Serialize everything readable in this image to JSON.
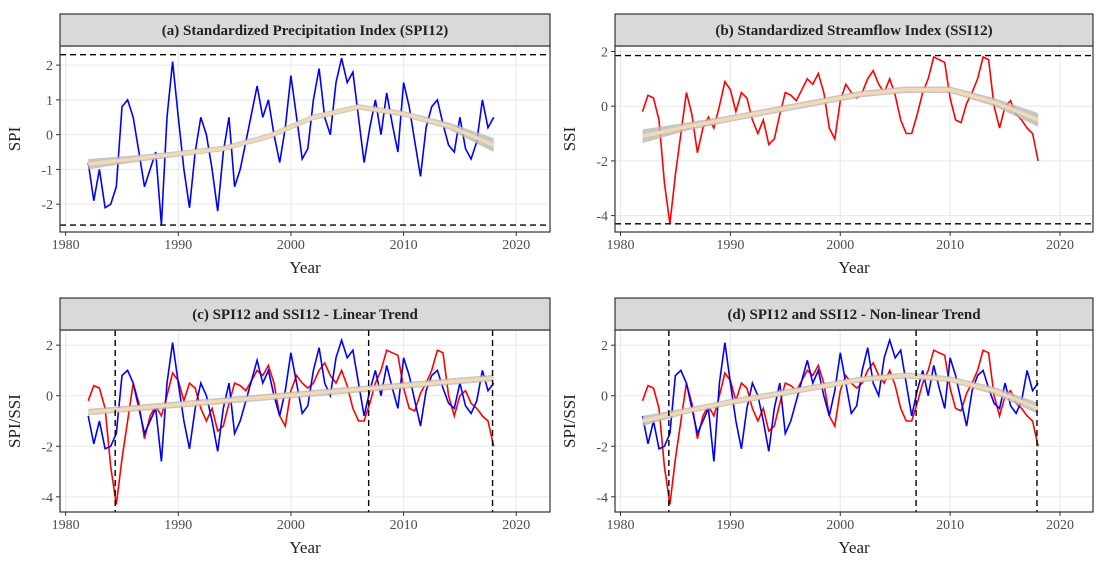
{
  "chart_data": [
    {
      "type": "line",
      "title": "(a) Standardized Precipitation Index (SPI12)",
      "x_label": "Year",
      "y_label": "SPI",
      "xlim": [
        1979.5,
        2023
      ],
      "xticks": [
        1980,
        1990,
        2000,
        2010,
        2020
      ],
      "ylim": [
        -2.8,
        2.55
      ],
      "yticks": [
        -2,
        -1,
        0,
        1,
        2
      ],
      "grid": true,
      "hlines": [
        2.3,
        -2.6
      ],
      "x": [
        1982,
        1982.5,
        1983,
        1983.5,
        1984,
        1984.5,
        1985,
        1985.5,
        1986,
        1986.5,
        1987,
        1987.5,
        1988,
        1988.5,
        1989,
        1989.5,
        1990,
        1990.5,
        1991,
        1991.5,
        1992,
        1992.5,
        1993,
        1993.5,
        1994,
        1994.5,
        1995,
        1995.5,
        1996,
        1996.5,
        1997,
        1997.5,
        1998,
        1998.5,
        1999,
        1999.5,
        2000,
        2000.5,
        2001,
        2001.5,
        2002,
        2002.5,
        2003,
        2003.5,
        2004,
        2004.5,
        2005,
        2005.5,
        2006,
        2006.5,
        2007,
        2007.5,
        2008,
        2008.5,
        2009,
        2009.5,
        2010,
        2010.5,
        2011,
        2011.5,
        2012,
        2012.5,
        2013,
        2013.5,
        2014,
        2014.5,
        2015,
        2015.5,
        2016,
        2016.5,
        2017,
        2017.5,
        2018
      ],
      "series": [
        {
          "color": "#0000ff",
          "values": [
            -0.8,
            -1.9,
            -1.0,
            -2.1,
            -2.0,
            -1.5,
            0.8,
            1.0,
            0.5,
            -0.5,
            -1.5,
            -1.0,
            -0.5,
            -2.6,
            0.5,
            2.1,
            0.5,
            -1.0,
            -2.1,
            -0.5,
            0.5,
            0.0,
            -1.0,
            -2.2,
            -0.5,
            0.5,
            -1.5,
            -1.0,
            -0.2,
            0.6,
            1.4,
            0.5,
            1.0,
            0.0,
            -0.8,
            0.2,
            1.7,
            0.5,
            -0.7,
            -0.4,
            1.0,
            1.9,
            0.5,
            0.0,
            1.5,
            2.2,
            1.5,
            1.8,
            0.5,
            -0.8,
            0.2,
            1.0,
            0.0,
            1.2,
            0.3,
            -0.5,
            1.5,
            0.8,
            -0.2,
            -1.2,
            0.2,
            0.8,
            1.0,
            0.3,
            -0.3,
            -0.5,
            0.5,
            -0.4,
            -0.7,
            -0.2,
            1.0,
            0.2,
            0.5
          ]
        }
      ],
      "trend": {
        "color": "#f2d9b3",
        "band_color": "#b8b8b8",
        "x": [
          1982,
          1986,
          1990,
          1994,
          1998,
          2002,
          2006,
          2010,
          2014,
          2018
        ],
        "values": [
          -0.85,
          -0.7,
          -0.55,
          -0.4,
          -0.05,
          0.5,
          0.8,
          0.6,
          0.25,
          -0.3
        ],
        "lower": [
          -1.0,
          -0.8,
          -0.63,
          -0.48,
          -0.13,
          0.42,
          0.72,
          0.52,
          0.15,
          -0.5
        ],
        "upper": [
          -0.7,
          -0.6,
          -0.47,
          -0.32,
          0.03,
          0.58,
          0.88,
          0.68,
          0.35,
          -0.1
        ]
      }
    },
    {
      "type": "line",
      "title": "(b) Standardized Streamflow Index (SSI12)",
      "x_label": "Year",
      "y_label": "SSI",
      "xlim": [
        1979.5,
        2023
      ],
      "xticks": [
        1980,
        1990,
        2000,
        2010,
        2020
      ],
      "ylim": [
        -4.6,
        2.2
      ],
      "yticks": [
        -4,
        -2,
        0,
        2
      ],
      "grid": true,
      "hlines": [
        1.85,
        -4.3
      ],
      "x": [
        1982,
        1982.5,
        1983,
        1983.5,
        1984,
        1984.5,
        1985,
        1985.5,
        1986,
        1986.5,
        1987,
        1987.5,
        1988,
        1988.5,
        1989,
        1989.5,
        1990,
        1990.5,
        1991,
        1991.5,
        1992,
        1992.5,
        1993,
        1993.5,
        1994,
        1994.5,
        1995,
        1995.5,
        1996,
        1996.5,
        1997,
        1997.5,
        1998,
        1998.5,
        1999,
        1999.5,
        2000,
        2000.5,
        2001,
        2001.5,
        2002,
        2002.5,
        2003,
        2003.5,
        2004,
        2004.5,
        2005,
        2005.5,
        2006,
        2006.5,
        2007,
        2007.5,
        2008,
        2008.5,
        2009,
        2009.5,
        2010,
        2010.5,
        2011,
        2011.5,
        2012,
        2012.5,
        2013,
        2013.5,
        2014,
        2014.5,
        2015,
        2015.5,
        2016,
        2016.5,
        2017,
        2017.5,
        2018
      ],
      "series": [
        {
          "color": "#ff0000",
          "values": [
            -0.2,
            0.4,
            0.3,
            -0.5,
            -2.8,
            -4.3,
            -2.5,
            -1.0,
            0.5,
            -0.3,
            -1.7,
            -0.8,
            -0.4,
            -0.8,
            0.0,
            0.9,
            0.6,
            -0.2,
            0.5,
            0.3,
            -0.5,
            -1.0,
            -0.5,
            -1.4,
            -1.2,
            -0.3,
            0.5,
            0.4,
            0.2,
            0.6,
            1.0,
            0.8,
            1.2,
            0.5,
            -0.8,
            -1.2,
            0.2,
            0.8,
            0.5,
            0.3,
            0.5,
            1.0,
            1.3,
            0.8,
            0.5,
            1.0,
            0.4,
            -0.5,
            -1.0,
            -1.0,
            -0.3,
            0.5,
            1.0,
            1.8,
            1.7,
            1.6,
            0.3,
            -0.5,
            -0.6,
            0.1,
            0.5,
            1.0,
            1.8,
            1.7,
            0.0,
            -0.8,
            0.0,
            0.2,
            -0.3,
            -0.5,
            -0.8,
            -1.0,
            -2.0
          ]
        }
      ],
      "trend": {
        "color": "#f2d9b3",
        "band_color": "#b8b8b8",
        "x": [
          1982,
          1986,
          1990,
          1994,
          1998,
          2002,
          2006,
          2010,
          2014,
          2018
        ],
        "values": [
          -1.1,
          -0.75,
          -0.45,
          -0.15,
          0.15,
          0.45,
          0.6,
          0.6,
          0.15,
          -0.5
        ],
        "lower": [
          -1.35,
          -0.9,
          -0.57,
          -0.27,
          0.03,
          0.33,
          0.48,
          0.48,
          0.0,
          -0.75
        ],
        "upper": [
          -0.85,
          -0.6,
          -0.33,
          -0.03,
          0.27,
          0.57,
          0.72,
          0.72,
          0.3,
          -0.25
        ]
      }
    },
    {
      "type": "line",
      "title": "(c) SPI12 and SSI12 - Linear Trend",
      "x_label": "Year",
      "y_label": "SPI/SSI",
      "xlim": [
        1979.5,
        2023
      ],
      "xticks": [
        1980,
        1990,
        2000,
        2010,
        2020
      ],
      "ylim": [
        -4.6,
        2.6
      ],
      "yticks": [
        -4,
        -2,
        0,
        2
      ],
      "grid": true,
      "vlines": [
        1984.4,
        2006.9,
        2017.9
      ],
      "x": [
        1982,
        1982.5,
        1983,
        1983.5,
        1984,
        1984.5,
        1985,
        1985.5,
        1986,
        1986.5,
        1987,
        1987.5,
        1988,
        1988.5,
        1989,
        1989.5,
        1990,
        1990.5,
        1991,
        1991.5,
        1992,
        1992.5,
        1993,
        1993.5,
        1994,
        1994.5,
        1995,
        1995.5,
        1996,
        1996.5,
        1997,
        1997.5,
        1998,
        1998.5,
        1999,
        1999.5,
        2000,
        2000.5,
        2001,
        2001.5,
        2002,
        2002.5,
        2003,
        2003.5,
        2004,
        2004.5,
        2005,
        2005.5,
        2006,
        2006.5,
        2007,
        2007.5,
        2008,
        2008.5,
        2009,
        2009.5,
        2010,
        2010.5,
        2011,
        2011.5,
        2012,
        2012.5,
        2013,
        2013.5,
        2014,
        2014.5,
        2015,
        2015.5,
        2016,
        2016.5,
        2017,
        2017.5,
        2018
      ],
      "series": [
        {
          "color": "#ff0000",
          "values": [
            -0.2,
            0.4,
            0.3,
            -0.5,
            -2.8,
            -4.3,
            -2.5,
            -1.0,
            0.5,
            -0.3,
            -1.7,
            -0.8,
            -0.4,
            -0.8,
            0.0,
            0.9,
            0.6,
            -0.2,
            0.5,
            0.3,
            -0.5,
            -1.0,
            -0.5,
            -1.4,
            -1.2,
            -0.3,
            0.5,
            0.4,
            0.2,
            0.6,
            1.0,
            0.8,
            1.2,
            0.5,
            -0.8,
            -1.2,
            0.2,
            0.8,
            0.5,
            0.3,
            0.5,
            1.0,
            1.3,
            0.8,
            0.5,
            1.0,
            0.4,
            -0.5,
            -1.0,
            -1.0,
            -0.3,
            0.5,
            1.0,
            1.8,
            1.7,
            1.6,
            0.3,
            -0.5,
            -0.6,
            0.1,
            0.5,
            1.0,
            1.8,
            1.7,
            0.0,
            -0.8,
            0.0,
            0.2,
            -0.3,
            -0.5,
            -0.8,
            -1.0,
            -2.0
          ]
        },
        {
          "color": "#0000ff",
          "values": [
            -0.8,
            -1.9,
            -1.0,
            -2.1,
            -2.0,
            -1.5,
            0.8,
            1.0,
            0.5,
            -0.5,
            -1.5,
            -1.0,
            -0.5,
            -2.6,
            0.5,
            2.1,
            0.5,
            -1.0,
            -2.1,
            -0.5,
            0.5,
            0.0,
            -1.0,
            -2.2,
            -0.5,
            0.5,
            -1.5,
            -1.0,
            -0.2,
            0.6,
            1.4,
            0.5,
            1.0,
            0.0,
            -0.8,
            0.2,
            1.7,
            0.5,
            -0.7,
            -0.4,
            1.0,
            1.9,
            0.5,
            0.0,
            1.5,
            2.2,
            1.5,
            1.8,
            0.5,
            -0.8,
            0.2,
            1.0,
            0.0,
            1.2,
            0.3,
            -0.5,
            1.5,
            0.8,
            -0.2,
            -1.2,
            0.2,
            0.8,
            1.0,
            0.3,
            -0.3,
            -0.5,
            0.5,
            -0.4,
            -0.7,
            -0.2,
            1.0,
            0.2,
            0.5
          ]
        }
      ],
      "trend": {
        "color": "#f2d9b3",
        "band_color": "#b8b8b8",
        "x": [
          1982,
          2018
        ],
        "values": [
          -0.65,
          0.7
        ],
        "lower": [
          -0.78,
          0.57
        ],
        "upper": [
          -0.52,
          0.83
        ]
      }
    },
    {
      "type": "line",
      "title": "(d) SPI12 and SSI12 - Non-linear Trend",
      "x_label": "Year",
      "y_label": "SPI/SSI",
      "xlim": [
        1979.5,
        2023
      ],
      "xticks": [
        1980,
        1990,
        2000,
        2010,
        2020
      ],
      "ylim": [
        -4.6,
        2.6
      ],
      "yticks": [
        -4,
        -2,
        0,
        2
      ],
      "grid": true,
      "vlines": [
        1984.4,
        2006.9,
        2017.9
      ],
      "x": [
        1982,
        1982.5,
        1983,
        1983.5,
        1984,
        1984.5,
        1985,
        1985.5,
        1986,
        1986.5,
        1987,
        1987.5,
        1988,
        1988.5,
        1989,
        1989.5,
        1990,
        1990.5,
        1991,
        1991.5,
        1992,
        1992.5,
        1993,
        1993.5,
        1994,
        1994.5,
        1995,
        1995.5,
        1996,
        1996.5,
        1997,
        1997.5,
        1998,
        1998.5,
        1999,
        1999.5,
        2000,
        2000.5,
        2001,
        2001.5,
        2002,
        2002.5,
        2003,
        2003.5,
        2004,
        2004.5,
        2005,
        2005.5,
        2006,
        2006.5,
        2007,
        2007.5,
        2008,
        2008.5,
        2009,
        2009.5,
        2010,
        2010.5,
        2011,
        2011.5,
        2012,
        2012.5,
        2013,
        2013.5,
        2014,
        2014.5,
        2015,
        2015.5,
        2016,
        2016.5,
        2017,
        2017.5,
        2018
      ],
      "series": [
        {
          "color": "#ff0000",
          "values": [
            -0.2,
            0.4,
            0.3,
            -0.5,
            -2.8,
            -4.3,
            -2.5,
            -1.0,
            0.5,
            -0.3,
            -1.7,
            -0.8,
            -0.4,
            -0.8,
            0.0,
            0.9,
            0.6,
            -0.2,
            0.5,
            0.3,
            -0.5,
            -1.0,
            -0.5,
            -1.4,
            -1.2,
            -0.3,
            0.5,
            0.4,
            0.2,
            0.6,
            1.0,
            0.8,
            1.2,
            0.5,
            -0.8,
            -1.2,
            0.2,
            0.8,
            0.5,
            0.3,
            0.5,
            1.0,
            1.3,
            0.8,
            0.5,
            1.0,
            0.4,
            -0.5,
            -1.0,
            -1.0,
            -0.3,
            0.5,
            1.0,
            1.8,
            1.7,
            1.6,
            0.3,
            -0.5,
            -0.6,
            0.1,
            0.5,
            1.0,
            1.8,
            1.7,
            0.0,
            -0.8,
            0.0,
            0.2,
            -0.3,
            -0.5,
            -0.8,
            -1.0,
            -2.0
          ]
        },
        {
          "color": "#0000ff",
          "values": [
            -0.8,
            -1.9,
            -1.0,
            -2.1,
            -2.0,
            -1.5,
            0.8,
            1.0,
            0.5,
            -0.5,
            -1.5,
            -1.0,
            -0.5,
            -2.6,
            0.5,
            2.1,
            0.5,
            -1.0,
            -2.1,
            -0.5,
            0.5,
            0.0,
            -1.0,
            -2.2,
            -0.5,
            0.5,
            -1.5,
            -1.0,
            -0.2,
            0.6,
            1.4,
            0.5,
            1.0,
            0.0,
            -0.8,
            0.2,
            1.7,
            0.5,
            -0.7,
            -0.4,
            1.0,
            1.9,
            0.5,
            0.0,
            1.5,
            2.2,
            1.5,
            1.8,
            0.5,
            -0.8,
            0.2,
            1.0,
            0.0,
            1.2,
            0.3,
            -0.5,
            1.5,
            0.8,
            -0.2,
            -1.2,
            0.2,
            0.8,
            1.0,
            0.3,
            -0.3,
            -0.5,
            0.5,
            -0.4,
            -0.7,
            -0.2,
            1.0,
            0.2,
            0.5
          ]
        }
      ],
      "trend": {
        "color": "#f2d9b3",
        "band_color": "#b8b8b8",
        "x": [
          1982,
          1986,
          1990,
          1994,
          1998,
          2002,
          2006,
          2010,
          2014,
          2018
        ],
        "values": [
          -1.0,
          -0.6,
          -0.25,
          0.05,
          0.35,
          0.65,
          0.8,
          0.65,
          0.2,
          -0.5
        ],
        "lower": [
          -1.2,
          -0.72,
          -0.37,
          -0.07,
          0.23,
          0.53,
          0.68,
          0.53,
          0.05,
          -0.72
        ],
        "upper": [
          -0.8,
          -0.48,
          -0.13,
          0.17,
          0.47,
          0.77,
          0.92,
          0.77,
          0.35,
          -0.28
        ]
      }
    }
  ]
}
